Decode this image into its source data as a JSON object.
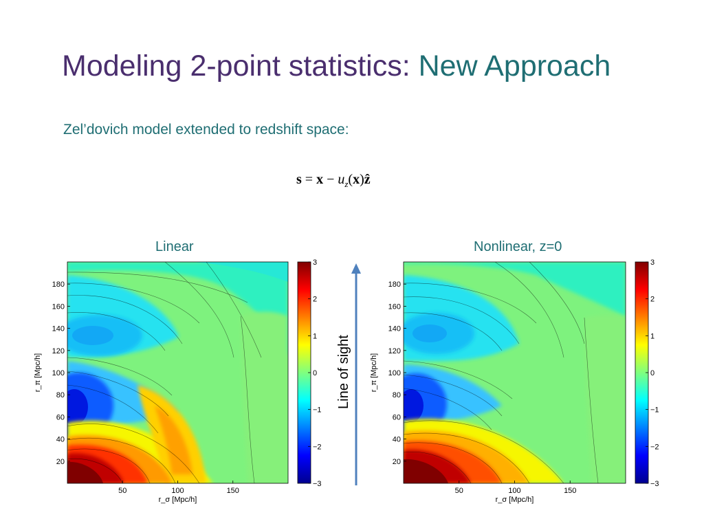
{
  "slide": {
    "title_main": "Modeling 2-point statistics: ",
    "title_accent": "New Approach",
    "subtitle": "Zel’dovich model extended to redshift space:",
    "equation": {
      "lhs": "s",
      "op1": " = ",
      "x1": "x",
      "op2": " − ",
      "u": "u",
      "sub": "z",
      "paren_open": "(",
      "x2": "x",
      "paren_close": ")",
      "zhat": "ẑ"
    },
    "line_of_sight_label": "Line of sight"
  },
  "chart_data": [
    {
      "type": "heatmap",
      "title": "Linear",
      "xlabel": "r_σ [Mpc/h]",
      "ylabel": "r_π [Mpc/h]",
      "xlim": [
        0,
        200
      ],
      "ylim": [
        0,
        200
      ],
      "xticks": [
        "50",
        "100",
        "150"
      ],
      "yticks": [
        "20",
        "40",
        "60",
        "80",
        "100",
        "120",
        "140",
        "160",
        "180"
      ],
      "colorbar": {
        "range": [
          -3,
          3
        ],
        "ticks": [
          "3",
          "2",
          "1",
          "0",
          "−1",
          "−2",
          "−3"
        ],
        "colormap": "jet"
      }
    },
    {
      "type": "heatmap",
      "title": "Nonlinear, z=0",
      "xlabel": "r_σ [Mpc/h]",
      "ylabel": "r_π [Mpc/h]",
      "xlim": [
        0,
        200
      ],
      "ylim": [
        0,
        200
      ],
      "xticks": [
        "50",
        "100",
        "150"
      ],
      "yticks": [
        "20",
        "40",
        "60",
        "80",
        "100",
        "120",
        "140",
        "160",
        "180"
      ],
      "colorbar": {
        "range": [
          -3,
          3
        ],
        "ticks": [
          "3",
          "2",
          "1",
          "0",
          "−1",
          "−2",
          "−3"
        ],
        "colormap": "jet"
      }
    }
  ]
}
